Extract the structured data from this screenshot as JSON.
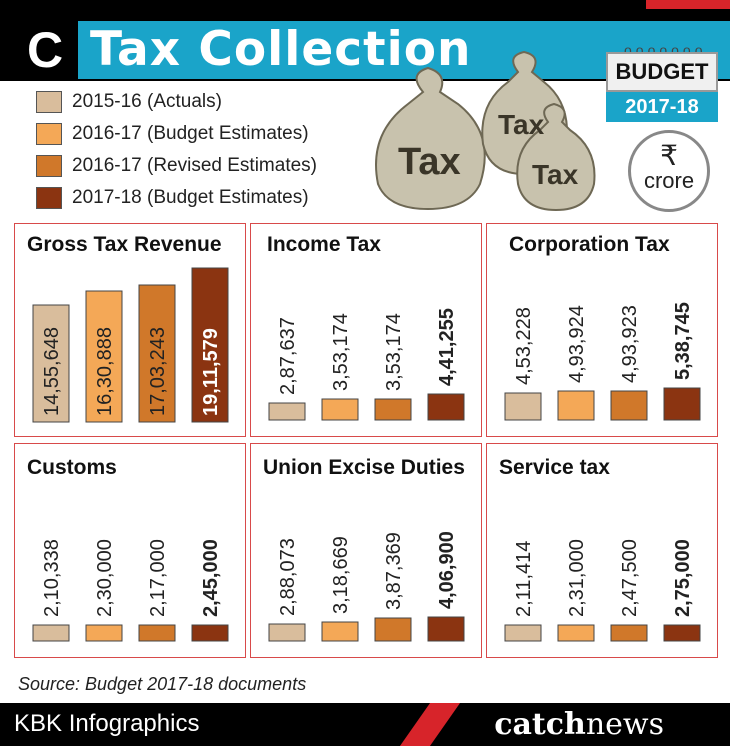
{
  "header": {
    "title": "Tax Collection",
    "logo_letter": "C"
  },
  "badge": {
    "top": "BUDGET",
    "bottom": "2017-18"
  },
  "unit": {
    "symbol": "₹",
    "text": "crore"
  },
  "colors": [
    "#d9bd9c",
    "#f4a857",
    "#d0782a",
    "#8b3411"
  ],
  "legend": [
    "2015-16 (Actuals)",
    "2016-17 (Budget Estimates)",
    "2016-17 (Revised Estimates)",
    "2017-18 (Budget Estimates)"
  ],
  "chart_data": [
    {
      "type": "bar",
      "title": "Gross Tax Revenue",
      "values": [
        1455648,
        1630888,
        1703243,
        1911579
      ],
      "labels": [
        "14,55,648",
        "16,30,888",
        "17,03,243",
        "19,11,579"
      ]
    },
    {
      "type": "bar",
      "title": "Income Tax",
      "values": [
        287637,
        353174,
        353174,
        441255
      ],
      "labels": [
        "2,87,637",
        "3,53,174",
        "3,53,174",
        "4,41,255"
      ]
    },
    {
      "type": "bar",
      "title": "Corporation Tax",
      "values": [
        453228,
        493924,
        493923,
        538745
      ],
      "labels": [
        "4,53,228",
        "4,93,924",
        "4,93,923",
        "5,38,745"
      ]
    },
    {
      "type": "bar",
      "title": "Customs",
      "values": [
        210338,
        230000,
        217000,
        245000
      ],
      "labels": [
        "2,10,338",
        "2,30,000",
        "2,17,000",
        "2,45,000"
      ]
    },
    {
      "type": "bar",
      "title": "Union Excise Duties",
      "values": [
        288073,
        318669,
        387369,
        406900
      ],
      "labels": [
        "2,88,073",
        "3,18,669",
        "3,87,369",
        "4,06,900"
      ]
    },
    {
      "type": "bar",
      "title": "Service tax",
      "values": [
        211414,
        231000,
        247500,
        275000
      ],
      "labels": [
        "2,11,414",
        "2,31,000",
        "2,47,500",
        "2,75,000"
      ]
    }
  ],
  "source": "Source: Budget 2017-18 documents",
  "footer": {
    "left": "KBK Infographics",
    "brand_a": "catch",
    "brand_b": "news"
  }
}
